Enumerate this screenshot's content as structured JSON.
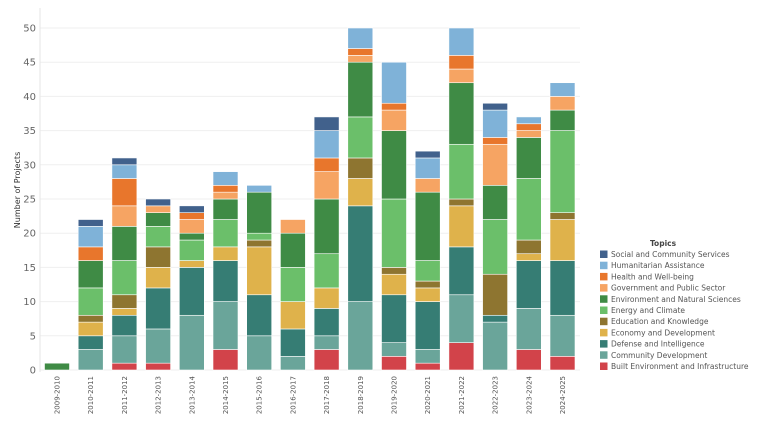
{
  "chart_data": {
    "type": "bar",
    "stacked": true,
    "title": "",
    "xlabel": "",
    "ylabel": "Number of Projects",
    "ylim": [
      0,
      52
    ],
    "yticks": [
      0,
      5,
      10,
      15,
      20,
      25,
      30,
      35,
      40,
      45,
      50
    ],
    "grid": true,
    "legend_title": "Topics",
    "legend_position": "right",
    "categories": [
      "2009-2010",
      "2010-2011",
      "2011-2012",
      "2012-2013",
      "2013-2014",
      "2014-2015",
      "2015-2016",
      "2016-2017",
      "2017-2018",
      "2018-2019",
      "2019-2020",
      "2020-2021",
      "2021-2022",
      "2022-2023",
      "2023-2024",
      "2024-2025"
    ],
    "series": [
      {
        "name": "Built Environment and Infrastructure",
        "color": "#d2434a",
        "values": [
          0,
          0,
          1,
          1,
          0,
          3,
          0,
          0,
          3,
          0,
          2,
          1,
          4,
          0,
          3,
          2
        ]
      },
      {
        "name": "Community Development",
        "color": "#6aa59a",
        "values": [
          0,
          3,
          4,
          5,
          8,
          7,
          5,
          2,
          2,
          10,
          2,
          2,
          7,
          7,
          6,
          6
        ]
      },
      {
        "name": "Defense and Intelligence",
        "color": "#367d74",
        "values": [
          0,
          2,
          3,
          6,
          7,
          6,
          6,
          4,
          4,
          14,
          7,
          7,
          7,
          1,
          7,
          8
        ]
      },
      {
        "name": "Economy and Development",
        "color": "#dfb24b",
        "values": [
          0,
          2,
          1,
          3,
          1,
          2,
          7,
          4,
          3,
          4,
          3,
          2,
          6,
          0,
          1,
          6
        ]
      },
      {
        "name": "Education and Knowledge",
        "color": "#8e7530",
        "values": [
          0,
          1,
          2,
          3,
          0,
          0,
          1,
          0,
          0,
          3,
          1,
          1,
          1,
          6,
          2,
          1
        ]
      },
      {
        "name": "Energy and Climate",
        "color": "#6bbf6a",
        "values": [
          0,
          4,
          5,
          3,
          3,
          4,
          1,
          5,
          5,
          6,
          10,
          3,
          8,
          8,
          9,
          12
        ]
      },
      {
        "name": "Environment and Natural Sciences",
        "color": "#3f8b45",
        "values": [
          1,
          4,
          5,
          2,
          1,
          3,
          6,
          5,
          8,
          8,
          10,
          10,
          9,
          5,
          6,
          3
        ]
      },
      {
        "name": "Government and Public Sector",
        "color": "#f6a463",
        "values": [
          0,
          0,
          3,
          1,
          2,
          1,
          0,
          2,
          4,
          1,
          3,
          2,
          2,
          6,
          1,
          2
        ]
      },
      {
        "name": "Health and Well-being",
        "color": "#e8762c",
        "values": [
          0,
          2,
          4,
          0,
          1,
          1,
          0,
          0,
          2,
          1,
          1,
          0,
          2,
          1,
          1,
          0
        ]
      },
      {
        "name": "Humanitarian Assistance",
        "color": "#7fb2d8",
        "values": [
          0,
          3,
          2,
          0,
          0,
          2,
          1,
          0,
          4,
          3,
          6,
          3,
          4,
          4,
          1,
          2
        ]
      },
      {
        "name": "Social and Community Services",
        "color": "#41618c",
        "values": [
          0,
          1,
          1,
          1,
          1,
          0,
          0,
          0,
          2,
          0,
          0,
          1,
          0,
          1,
          0,
          0
        ]
      }
    ]
  }
}
